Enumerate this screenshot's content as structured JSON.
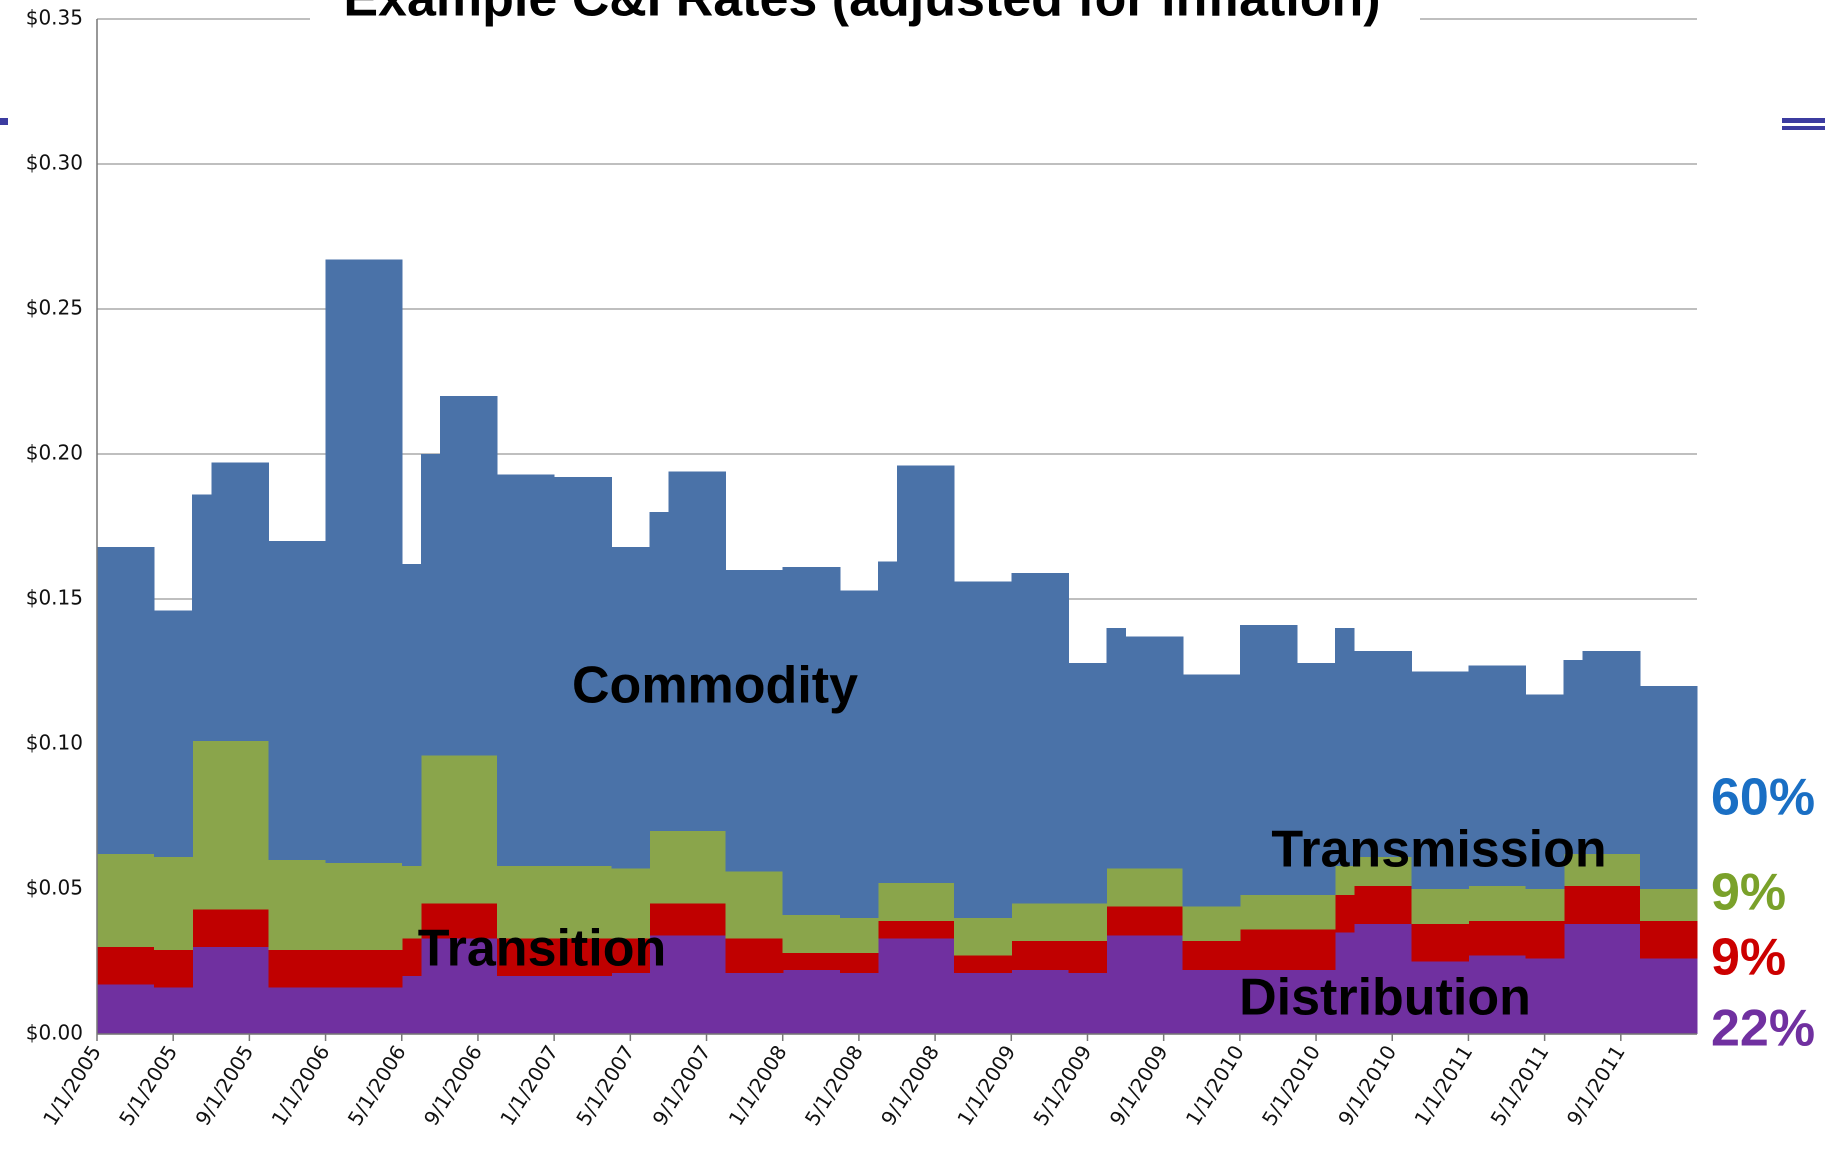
{
  "chart_data": {
    "type": "stacked_step_area",
    "title": "Example C&I Rates (adjusted for inflation)",
    "categories": [
      "1/1/2005",
      null,
      null,
      null,
      "5/1/2005",
      null,
      null,
      null,
      "9/1/2005",
      null,
      null,
      null,
      "1/1/2006",
      null,
      null,
      null,
      "5/1/2006",
      null,
      null,
      null,
      "9/1/2006",
      null,
      null,
      null,
      "1/1/2007",
      null,
      null,
      null,
      "5/1/2007",
      null,
      null,
      null,
      "9/1/2007",
      null,
      null,
      null,
      "1/1/2008",
      null,
      null,
      null,
      "5/1/2008",
      null,
      null,
      null,
      "9/1/2008",
      null,
      null,
      null,
      "1/1/2009",
      null,
      null,
      null,
      "5/1/2009",
      null,
      null,
      null,
      "9/1/2009",
      null,
      null,
      null,
      "1/1/2010",
      null,
      null,
      null,
      "5/1/2010",
      null,
      null,
      null,
      "9/1/2010",
      null,
      null,
      null,
      "1/1/2011",
      null,
      null,
      null,
      "5/1/2011",
      null,
      null,
      null,
      "9/1/2011",
      null,
      null,
      null
    ],
    "series": [
      {
        "name": "Distribution",
        "color": "#7030a0",
        "values": [
          0.017,
          0.017,
          0.017,
          0.016,
          0.016,
          0.03,
          0.03,
          0.03,
          0.03,
          0.016,
          0.016,
          0.016,
          0.016,
          0.016,
          0.016,
          0.016,
          0.02,
          0.033,
          0.033,
          0.033,
          0.033,
          0.02,
          0.02,
          0.02,
          0.02,
          0.02,
          0.02,
          0.021,
          0.021,
          0.034,
          0.034,
          0.034,
          0.034,
          0.021,
          0.021,
          0.021,
          0.022,
          0.022,
          0.022,
          0.021,
          0.021,
          0.033,
          0.033,
          0.033,
          0.033,
          0.021,
          0.021,
          0.021,
          0.022,
          0.022,
          0.022,
          0.021,
          0.021,
          0.034,
          0.034,
          0.034,
          0.034,
          0.022,
          0.022,
          0.022,
          0.022,
          0.022,
          0.022,
          0.022,
          0.022,
          0.035,
          0.038,
          0.038,
          0.038,
          0.025,
          0.025,
          0.025,
          0.027,
          0.027,
          0.027,
          0.026,
          0.026,
          0.038,
          0.038,
          0.038,
          0.038,
          0.026,
          0.026,
          0.026
        ]
      },
      {
        "name": "Transition",
        "color": "#c00000",
        "values": [
          0.013,
          0.013,
          0.013,
          0.013,
          0.013,
          0.013,
          0.013,
          0.013,
          0.013,
          0.013,
          0.013,
          0.013,
          0.013,
          0.013,
          0.013,
          0.013,
          0.013,
          0.012,
          0.012,
          0.012,
          0.012,
          0.013,
          0.013,
          0.013,
          0.013,
          0.013,
          0.013,
          0.012,
          0.012,
          0.011,
          0.011,
          0.011,
          0.011,
          0.012,
          0.012,
          0.012,
          0.006,
          0.006,
          0.006,
          0.007,
          0.007,
          0.006,
          0.006,
          0.006,
          0.006,
          0.006,
          0.006,
          0.006,
          0.01,
          0.01,
          0.01,
          0.011,
          0.011,
          0.01,
          0.01,
          0.01,
          0.01,
          0.01,
          0.01,
          0.01,
          0.014,
          0.014,
          0.014,
          0.014,
          0.014,
          0.013,
          0.013,
          0.013,
          0.013,
          0.013,
          0.013,
          0.013,
          0.012,
          0.012,
          0.012,
          0.013,
          0.013,
          0.013,
          0.013,
          0.013,
          0.013,
          0.013,
          0.013,
          0.013
        ]
      },
      {
        "name": "Transmission",
        "color": "#8aa54b",
        "values": [
          0.032,
          0.032,
          0.032,
          0.032,
          0.032,
          0.058,
          0.058,
          0.058,
          0.058,
          0.031,
          0.031,
          0.031,
          0.03,
          0.03,
          0.03,
          0.03,
          0.025,
          0.051,
          0.051,
          0.051,
          0.051,
          0.025,
          0.025,
          0.025,
          0.025,
          0.025,
          0.025,
          0.024,
          0.024,
          0.025,
          0.025,
          0.025,
          0.025,
          0.023,
          0.023,
          0.023,
          0.013,
          0.013,
          0.013,
          0.012,
          0.012,
          0.013,
          0.013,
          0.013,
          0.013,
          0.013,
          0.013,
          0.013,
          0.013,
          0.013,
          0.013,
          0.013,
          0.013,
          0.013,
          0.013,
          0.013,
          0.013,
          0.012,
          0.012,
          0.012,
          0.012,
          0.012,
          0.012,
          0.012,
          0.012,
          0.01,
          0.01,
          0.01,
          0.01,
          0.012,
          0.012,
          0.012,
          0.012,
          0.012,
          0.012,
          0.011,
          0.011,
          0.011,
          0.011,
          0.011,
          0.011,
          0.011,
          0.011,
          0.011
        ]
      },
      {
        "name": "Commodity",
        "color": "#4a72a8",
        "values": [
          0.106,
          0.106,
          0.106,
          0.085,
          0.085,
          0.085,
          0.096,
          0.096,
          0.096,
          0.11,
          0.11,
          0.11,
          0.208,
          0.208,
          0.208,
          0.208,
          0.104,
          0.104,
          0.124,
          0.124,
          0.124,
          0.135,
          0.135,
          0.135,
          0.134,
          0.134,
          0.134,
          0.111,
          0.111,
          0.11,
          0.124,
          0.124,
          0.124,
          0.104,
          0.104,
          0.104,
          0.12,
          0.12,
          0.12,
          0.113,
          0.113,
          0.111,
          0.144,
          0.144,
          0.144,
          0.116,
          0.116,
          0.116,
          0.114,
          0.114,
          0.114,
          0.083,
          0.083,
          0.083,
          0.08,
          0.08,
          0.08,
          0.08,
          0.08,
          0.08,
          0.093,
          0.093,
          0.093,
          0.08,
          0.08,
          0.082,
          0.071,
          0.071,
          0.071,
          0.075,
          0.075,
          0.075,
          0.076,
          0.076,
          0.076,
          0.067,
          0.067,
          0.067,
          0.07,
          0.07,
          0.07,
          0.07,
          0.07,
          0.07
        ]
      }
    ],
    "annotations": [
      {
        "text": "60%",
        "color": "#1a6fc4"
      },
      {
        "text": "9%",
        "color": "#7aa12a"
      },
      {
        "text": "9%",
        "color": "#cc0000"
      },
      {
        "text": "22%",
        "color": "#7030a0"
      }
    ],
    "ylim": [
      0,
      0.35
    ],
    "yticks": [
      {
        "value": 0,
        "label": "$0.00"
      },
      {
        "value": 0.05,
        "label": "$0.05"
      },
      {
        "value": 0.1,
        "label": "$0.10"
      },
      {
        "value": 0.15,
        "label": "$0.15"
      },
      {
        "value": 0.2,
        "label": "$0.20"
      },
      {
        "value": 0.25,
        "label": "$0.25"
      },
      {
        "value": 0.3,
        "label": "$0.30"
      },
      {
        "value": 0.35,
        "label": "$0.35"
      }
    ],
    "grid": true
  }
}
